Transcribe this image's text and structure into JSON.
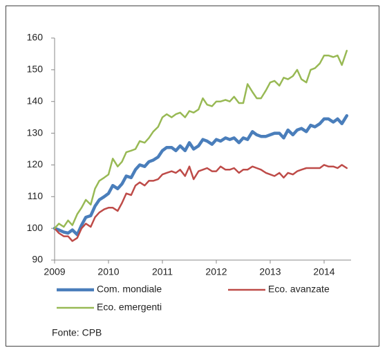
{
  "chart_data": {
    "type": "line",
    "x": [
      2009,
      2009.08,
      2009.17,
      2009.25,
      2009.33,
      2009.42,
      2009.5,
      2009.58,
      2009.67,
      2009.75,
      2009.83,
      2009.92,
      2010,
      2010.08,
      2010.17,
      2010.25,
      2010.33,
      2010.42,
      2010.5,
      2010.58,
      2010.67,
      2010.75,
      2010.83,
      2010.92,
      2011,
      2011.08,
      2011.17,
      2011.25,
      2011.33,
      2011.42,
      2011.5,
      2011.58,
      2011.67,
      2011.75,
      2011.83,
      2011.92,
      2012,
      2012.08,
      2012.17,
      2012.25,
      2012.33,
      2012.42,
      2012.5,
      2012.58,
      2012.67,
      2012.75,
      2012.83,
      2012.92,
      2013,
      2013.08,
      2013.17,
      2013.25,
      2013.33,
      2013.42,
      2013.5,
      2013.58,
      2013.67,
      2013.75,
      2013.83,
      2013.92,
      2014,
      2014.08,
      2014.17,
      2014.25,
      2014.33,
      2014.42
    ],
    "series": [
      {
        "name": "Com. mondiale",
        "color": "#4a7ebb",
        "width": 4.5,
        "values": [
          100,
          99.5,
          98.8,
          98.5,
          99.5,
          98,
          101,
          103.5,
          104,
          107,
          109,
          110,
          111,
          113.5,
          112.5,
          114,
          116.5,
          116,
          118.5,
          120,
          119.5,
          121,
          121.5,
          122.5,
          124.5,
          125.5,
          125.5,
          124.5,
          126,
          124.5,
          127,
          125,
          126,
          128,
          127.5,
          126.5,
          128,
          127.5,
          128.5,
          128,
          128.5,
          127,
          128.5,
          128,
          130.5,
          129.5,
          129,
          129,
          129.5,
          130,
          130,
          128.5,
          131,
          129.5,
          131,
          131.5,
          130.5,
          132.5,
          132,
          133,
          134.5,
          134.5,
          133.5,
          134.5,
          133,
          135.5
        ]
      },
      {
        "name": "Eco. avanzate",
        "color": "#be4b48",
        "width": 2.5,
        "values": [
          100,
          98.5,
          97.5,
          97.5,
          96,
          97,
          100,
          101.5,
          100.5,
          103.5,
          105,
          106,
          106.5,
          106.5,
          105.5,
          108,
          111,
          110.5,
          113.5,
          114.5,
          113.5,
          115,
          115,
          115.5,
          117,
          117.5,
          118,
          117.5,
          118.5,
          116.5,
          119.5,
          115.5,
          118,
          118.5,
          119,
          118,
          118,
          119.5,
          118.5,
          118.5,
          119,
          117.5,
          118.5,
          118.5,
          119.5,
          119,
          118.5,
          117.5,
          117,
          116.5,
          117.5,
          116,
          117.5,
          117,
          118,
          118.5,
          119,
          119,
          119,
          119,
          120,
          119.5,
          119.5,
          119,
          120,
          119
        ]
      },
      {
        "name": "Eco. emergenti",
        "color": "#98b954",
        "width": 2.5,
        "values": [
          100,
          101.5,
          100.5,
          102.5,
          101,
          104.5,
          106.5,
          109,
          107.5,
          112.5,
          115,
          116,
          117,
          122,
          119.5,
          121,
          124,
          124.5,
          125,
          127.5,
          127,
          128.5,
          130.5,
          132,
          135,
          136,
          135,
          136,
          136.5,
          135,
          137,
          136.5,
          137.5,
          141,
          139,
          138.5,
          140,
          140,
          140.5,
          140,
          141.5,
          139.5,
          139.5,
          145.5,
          143,
          141,
          141,
          143.5,
          146,
          146.5,
          145,
          147.5,
          147,
          148,
          150,
          147,
          146,
          150,
          150.5,
          152,
          154.5,
          154.5,
          154,
          154.5,
          151.5,
          156
        ]
      }
    ],
    "xlim": [
      2009,
      2014.5
    ],
    "xticks": [
      2009,
      2010,
      2011,
      2012,
      2013,
      2014
    ],
    "ylim": [
      90,
      160
    ],
    "yticks": [
      90,
      100,
      110,
      120,
      130,
      140,
      150,
      160
    ],
    "grid": false,
    "legend": "bottom",
    "source": "Fonte: CPB"
  }
}
